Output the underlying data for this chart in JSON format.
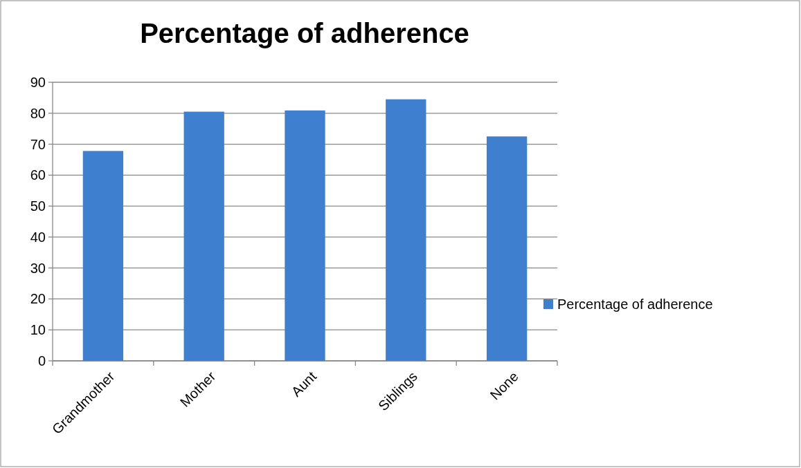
{
  "chart_data": {
    "type": "bar",
    "title": "Percentage of adherence",
    "categories": [
      "Grandmother",
      "Mother",
      "Aunt",
      "Siblings",
      "None"
    ],
    "series": [
      {
        "name": "Percentage of adherence",
        "color": "#3f7fd0",
        "values": [
          67.8,
          80.5,
          80.9,
          84.5,
          72.5
        ]
      }
    ],
    "ylim": [
      0,
      90
    ],
    "yticks": [
      0,
      10,
      20,
      30,
      40,
      50,
      60,
      70,
      80,
      90
    ],
    "grid": "y",
    "legend": "right"
  }
}
